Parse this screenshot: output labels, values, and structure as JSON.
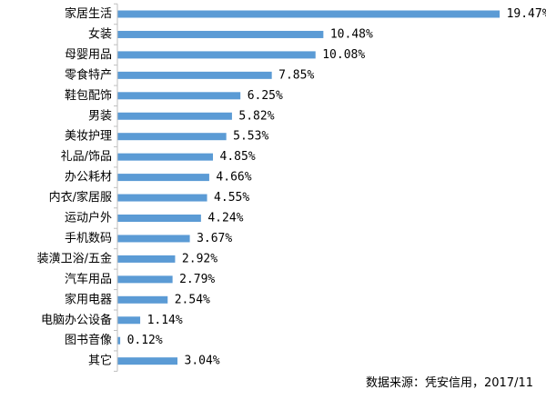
{
  "chart_data": {
    "type": "bar",
    "orientation": "horizontal",
    "categories": [
      "家居生活",
      "女装",
      "母婴用品",
      "零食特产",
      "鞋包配饰",
      "男装",
      "美妆护理",
      "礼品/饰品",
      "办公耗材",
      "内衣/家居服",
      "运动户外",
      "手机数码",
      "装潢卫浴/五金",
      "汽车用品",
      "家用电器",
      "电脑办公设备",
      "图书音像",
      "其它"
    ],
    "values": [
      19.47,
      10.48,
      10.08,
      7.85,
      6.25,
      5.82,
      5.53,
      4.85,
      4.66,
      4.55,
      4.24,
      3.67,
      2.92,
      2.79,
      2.54,
      1.14,
      0.12,
      3.04
    ],
    "value_labels": [
      "19.47%",
      "10.48%",
      "10.08%",
      "7.85%",
      "6.25%",
      "5.82%",
      "5.53%",
      "4.85%",
      "4.66%",
      "4.55%",
      "4.24%",
      "3.67%",
      "2.92%",
      "2.79%",
      "2.54%",
      "1.14%",
      "0.12%",
      "3.04%"
    ],
    "unit": "%",
    "title": "",
    "xlabel": "",
    "ylabel": "",
    "xlim": [
      0,
      20
    ],
    "grid": false,
    "legend": "none",
    "bar_color": "#5b9bd5",
    "axis_color": "#bfbfbf"
  },
  "source_note": "数据来源：凭安信用，2017/11"
}
